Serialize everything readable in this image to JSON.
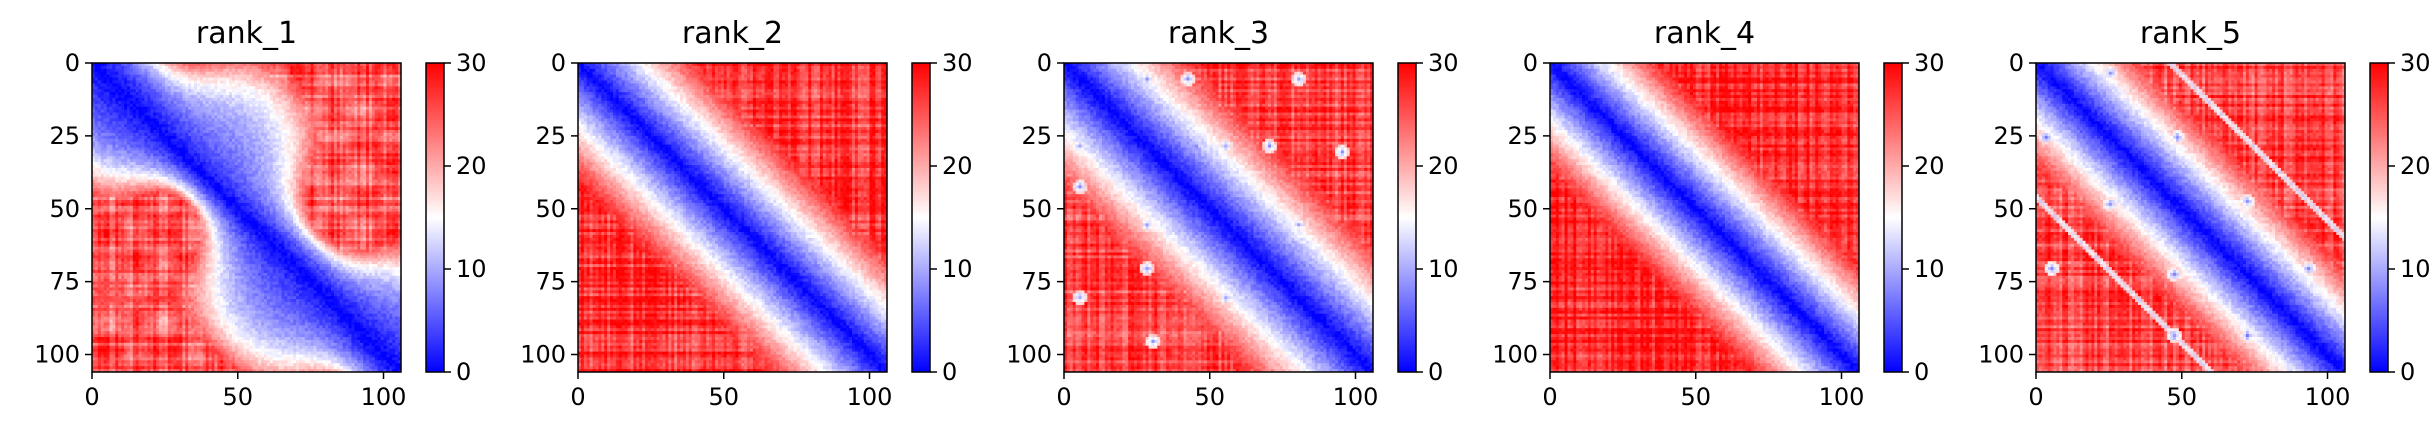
{
  "chart_data": [
    {
      "type": "heatmap",
      "title": "rank_1",
      "xticks": [
        0,
        50,
        100
      ],
      "yticks": [
        0,
        25,
        50,
        75,
        100
      ],
      "xlim": [
        0,
        106
      ],
      "ylim": [
        106,
        0
      ],
      "colorbar": {
        "vmin": 0,
        "vmax": 30,
        "ticks": [
          0,
          10,
          20,
          30
        ]
      },
      "matrix_size": 106,
      "pattern": "strong blue diagonal band (low values) with a wavy/thick shape; off-diagonal mostly red (~25-30) with light vertical/horizontal striations"
    },
    {
      "type": "heatmap",
      "title": "rank_2",
      "xticks": [
        0,
        50,
        100
      ],
      "yticks": [
        0,
        25,
        50,
        75,
        100
      ],
      "xlim": [
        0,
        106
      ],
      "ylim": [
        106,
        0
      ],
      "colorbar": {
        "vmin": 0,
        "vmax": 30,
        "ticks": [
          0,
          10,
          20,
          30
        ]
      },
      "matrix_size": 106,
      "pattern": "narrow blue diagonal band; off-diagonal red with faint pale patches"
    },
    {
      "type": "heatmap",
      "title": "rank_3",
      "xticks": [
        0,
        50,
        100
      ],
      "yticks": [
        0,
        25,
        50,
        75,
        100
      ],
      "xlim": [
        0,
        106
      ],
      "ylim": [
        106,
        0
      ],
      "colorbar": {
        "vmin": 0,
        "vmax": 30,
        "ticks": [
          0,
          10,
          20,
          30
        ]
      },
      "matrix_size": 106,
      "pattern": "blue diagonal band with several small pale-blue spots off-diagonal"
    },
    {
      "type": "heatmap",
      "title": "rank_4",
      "xticks": [
        0,
        50,
        100
      ],
      "yticks": [
        0,
        25,
        50,
        75,
        100
      ],
      "xlim": [
        0,
        106
      ],
      "ylim": [
        106,
        0
      ],
      "colorbar": {
        "vmin": 0,
        "vmax": 30,
        "ticks": [
          0,
          10,
          20,
          30
        ]
      },
      "matrix_size": 106,
      "pattern": "clean blue diagonal band; off-diagonal uniformly red"
    },
    {
      "type": "heatmap",
      "title": "rank_5",
      "xticks": [
        0,
        50,
        100
      ],
      "yticks": [
        0,
        25,
        50,
        75,
        100
      ],
      "xlim": [
        0,
        106
      ],
      "ylim": [
        106,
        0
      ],
      "colorbar": {
        "vmin": 0,
        "vmax": 30,
        "ticks": [
          0,
          10,
          20,
          30
        ]
      },
      "matrix_size": 106,
      "pattern": "blue diagonal band plus parallel off-diagonal pale-blue lines and spots"
    }
  ],
  "colors": {
    "low": "#0000ff",
    "mid": "#ffffff",
    "high": "#ff0000"
  }
}
